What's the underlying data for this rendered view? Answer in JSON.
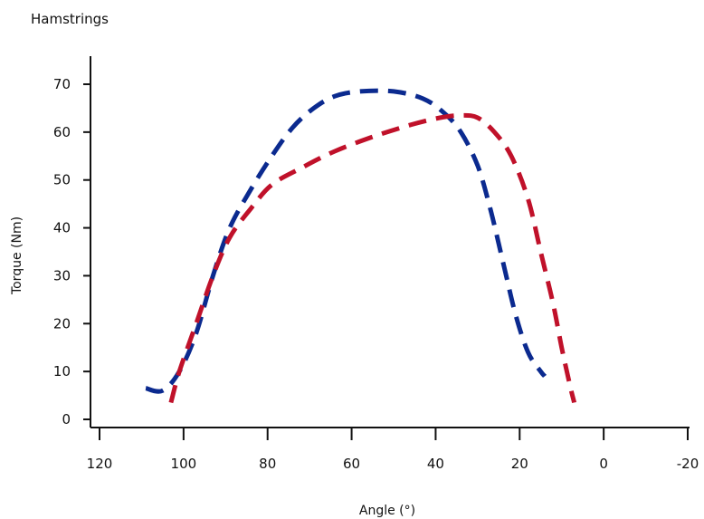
{
  "chart_data": {
    "type": "line",
    "title": "Hamstrings",
    "xlabel": "Angle (°)",
    "ylabel": "Torque (Nm)",
    "xlim": [
      120,
      -20
    ],
    "ylim": [
      0,
      70
    ],
    "xticks": [
      120,
      100,
      80,
      60,
      40,
      20,
      0,
      -20
    ],
    "yticks": [
      0,
      10,
      20,
      30,
      40,
      50,
      60,
      70
    ],
    "grid": false,
    "series": [
      {
        "color": "#0b2a8f",
        "dash": "dashed",
        "points": [
          {
            "x": 109,
            "y": 6.5
          },
          {
            "x": 105,
            "y": 6
          },
          {
            "x": 101,
            "y": 10
          },
          {
            "x": 97,
            "y": 18
          },
          {
            "x": 93,
            "y": 30
          },
          {
            "x": 89,
            "y": 40
          },
          {
            "x": 84,
            "y": 48
          },
          {
            "x": 79,
            "y": 55
          },
          {
            "x": 74,
            "y": 61
          },
          {
            "x": 69,
            "y": 65
          },
          {
            "x": 64,
            "y": 67.5
          },
          {
            "x": 58,
            "y": 68.5
          },
          {
            "x": 50,
            "y": 68.5
          },
          {
            "x": 43,
            "y": 67
          },
          {
            "x": 38,
            "y": 64
          },
          {
            "x": 34,
            "y": 60
          },
          {
            "x": 30,
            "y": 53
          },
          {
            "x": 27,
            "y": 44
          },
          {
            "x": 24,
            "y": 33
          },
          {
            "x": 21,
            "y": 22
          },
          {
            "x": 18,
            "y": 14
          },
          {
            "x": 15,
            "y": 10
          },
          {
            "x": 14,
            "y": 9
          }
        ]
      },
      {
        "color": "#c0112a",
        "dash": "dashed",
        "points": [
          {
            "x": 103,
            "y": 3.5
          },
          {
            "x": 101,
            "y": 10
          },
          {
            "x": 97,
            "y": 20
          },
          {
            "x": 93,
            "y": 30
          },
          {
            "x": 89,
            "y": 38
          },
          {
            "x": 84,
            "y": 44
          },
          {
            "x": 79,
            "y": 49
          },
          {
            "x": 72,
            "y": 52.5
          },
          {
            "x": 64,
            "y": 56
          },
          {
            "x": 55,
            "y": 59
          },
          {
            "x": 46,
            "y": 61.5
          },
          {
            "x": 39,
            "y": 63
          },
          {
            "x": 34,
            "y": 63.5
          },
          {
            "x": 30,
            "y": 63
          },
          {
            "x": 26,
            "y": 60
          },
          {
            "x": 22,
            "y": 55
          },
          {
            "x": 18,
            "y": 46
          },
          {
            "x": 15,
            "y": 35
          },
          {
            "x": 12,
            "y": 24
          },
          {
            "x": 10,
            "y": 15
          },
          {
            "x": 8,
            "y": 7
          },
          {
            "x": 7,
            "y": 3.5
          }
        ]
      }
    ]
  }
}
